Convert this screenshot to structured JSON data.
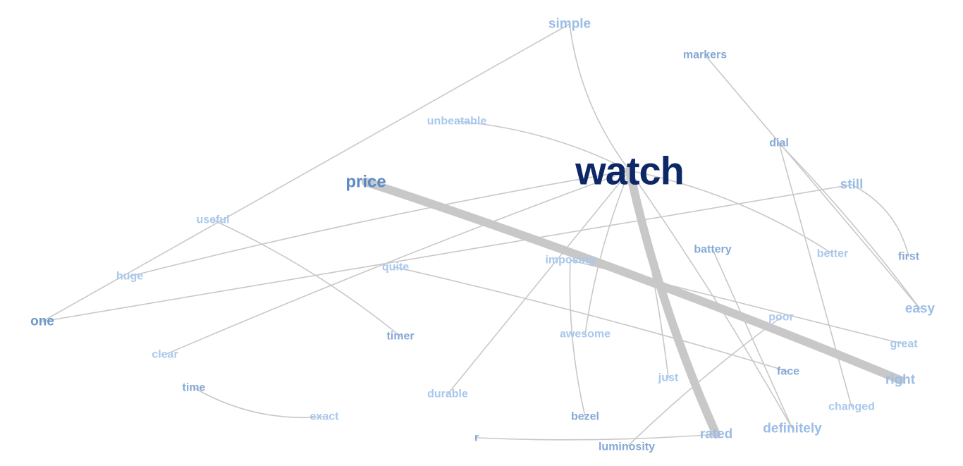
{
  "graph": {
    "edge_color": "#c8c8c8",
    "nodes": [
      {
        "id": "watch",
        "label": "watch",
        "importance": 1.0,
        "color": "#0d2767"
      },
      {
        "id": "price",
        "label": "price",
        "importance": 0.5,
        "color": "#5b8ac7"
      },
      {
        "id": "one",
        "label": "one",
        "importance": 0.45,
        "color": "#6d97cc"
      },
      {
        "id": "simple",
        "label": "simple",
        "importance": 0.45,
        "color": "#9bbde6"
      },
      {
        "id": "still",
        "label": "still",
        "importance": 0.45,
        "color": "#9bbde6"
      },
      {
        "id": "easy",
        "label": "easy",
        "importance": 0.45,
        "color": "#9bbde6"
      },
      {
        "id": "right",
        "label": "right",
        "importance": 0.45,
        "color": "#9bbde6"
      },
      {
        "id": "rated",
        "label": "rated",
        "importance": 0.45,
        "color": "#9bbde6"
      },
      {
        "id": "definitely",
        "label": "definitely",
        "importance": 0.45,
        "color": "#9bbde6"
      },
      {
        "id": "markers",
        "label": "markers",
        "importance": 0.3,
        "color": "#86a9d6"
      },
      {
        "id": "unbeatable",
        "label": "unbeatable",
        "importance": 0.3,
        "color": "#a9c8ec"
      },
      {
        "id": "dial",
        "label": "dial",
        "importance": 0.3,
        "color": "#86a9d6"
      },
      {
        "id": "useful",
        "label": "useful",
        "importance": 0.3,
        "color": "#a9c8ec"
      },
      {
        "id": "huge",
        "label": "huge",
        "importance": 0.3,
        "color": "#a9c8ec"
      },
      {
        "id": "first",
        "label": "first",
        "importance": 0.3,
        "color": "#86a9d6"
      },
      {
        "id": "better",
        "label": "better",
        "importance": 0.3,
        "color": "#a9c8ec"
      },
      {
        "id": "battery",
        "label": "battery",
        "importance": 0.3,
        "color": "#86a9d6"
      },
      {
        "id": "imposing",
        "label": "imposing",
        "importance": 0.3,
        "color": "#a9c8ec"
      },
      {
        "id": "quite",
        "label": "quite",
        "importance": 0.3,
        "color": "#a9c8ec"
      },
      {
        "id": "poor",
        "label": "poor",
        "importance": 0.3,
        "color": "#a9c8ec"
      },
      {
        "id": "timer",
        "label": "timer",
        "importance": 0.3,
        "color": "#86a9d6"
      },
      {
        "id": "awesome",
        "label": "awesome",
        "importance": 0.3,
        "color": "#a9c8ec"
      },
      {
        "id": "clear",
        "label": "clear",
        "importance": 0.3,
        "color": "#a9c8ec"
      },
      {
        "id": "great",
        "label": "great",
        "importance": 0.3,
        "color": "#a9c8ec"
      },
      {
        "id": "face",
        "label": "face",
        "importance": 0.3,
        "color": "#86a9d6"
      },
      {
        "id": "just",
        "label": "just",
        "importance": 0.3,
        "color": "#a9c8ec"
      },
      {
        "id": "time",
        "label": "time",
        "importance": 0.3,
        "color": "#86a9d6"
      },
      {
        "id": "durable",
        "label": "durable",
        "importance": 0.3,
        "color": "#a9c8ec"
      },
      {
        "id": "changed",
        "label": "changed",
        "importance": 0.3,
        "color": "#a9c8ec"
      },
      {
        "id": "exact",
        "label": "exact",
        "importance": 0.3,
        "color": "#a9c8ec"
      },
      {
        "id": "bezel",
        "label": "bezel",
        "importance": 0.3,
        "color": "#86a9d6"
      },
      {
        "id": "r",
        "label": "r",
        "importance": 0.3,
        "color": "#86a9d6"
      },
      {
        "id": "luminosity",
        "label": "luminosity",
        "importance": 0.3,
        "color": "#86a9d6"
      }
    ],
    "edges": [
      {
        "from": "price",
        "to": "right",
        "weight": 8
      },
      {
        "from": "watch",
        "to": "rated",
        "weight": 8
      },
      {
        "from": "watch",
        "to": "simple",
        "weight": 1
      },
      {
        "from": "watch",
        "to": "unbeatable",
        "weight": 1
      },
      {
        "from": "watch",
        "to": "huge",
        "weight": 1
      },
      {
        "from": "watch",
        "to": "clear",
        "weight": 1
      },
      {
        "from": "watch",
        "to": "better",
        "weight": 1
      },
      {
        "from": "watch",
        "to": "awesome",
        "weight": 1
      },
      {
        "from": "watch",
        "to": "durable",
        "weight": 1
      },
      {
        "from": "watch",
        "to": "just",
        "weight": 1
      },
      {
        "from": "watch",
        "to": "definitely",
        "weight": 1
      },
      {
        "from": "simple",
        "to": "one",
        "weight": 1
      },
      {
        "from": "markers",
        "to": "easy",
        "weight": 1
      },
      {
        "from": "dial",
        "to": "changed",
        "weight": 1
      },
      {
        "from": "dial",
        "to": "easy",
        "weight": 1
      },
      {
        "from": "still",
        "to": "first",
        "weight": 1
      },
      {
        "from": "still",
        "to": "one",
        "weight": 1
      },
      {
        "from": "useful",
        "to": "timer",
        "weight": 1
      },
      {
        "from": "quite",
        "to": "face",
        "weight": 1
      },
      {
        "from": "imposing",
        "to": "great",
        "weight": 1
      },
      {
        "from": "imposing",
        "to": "bezel",
        "weight": 1
      },
      {
        "from": "battery",
        "to": "definitely",
        "weight": 1
      },
      {
        "from": "poor",
        "to": "luminosity",
        "weight": 1
      },
      {
        "from": "time",
        "to": "exact",
        "weight": 1
      },
      {
        "from": "r",
        "to": "rated",
        "weight": 1
      }
    ]
  }
}
